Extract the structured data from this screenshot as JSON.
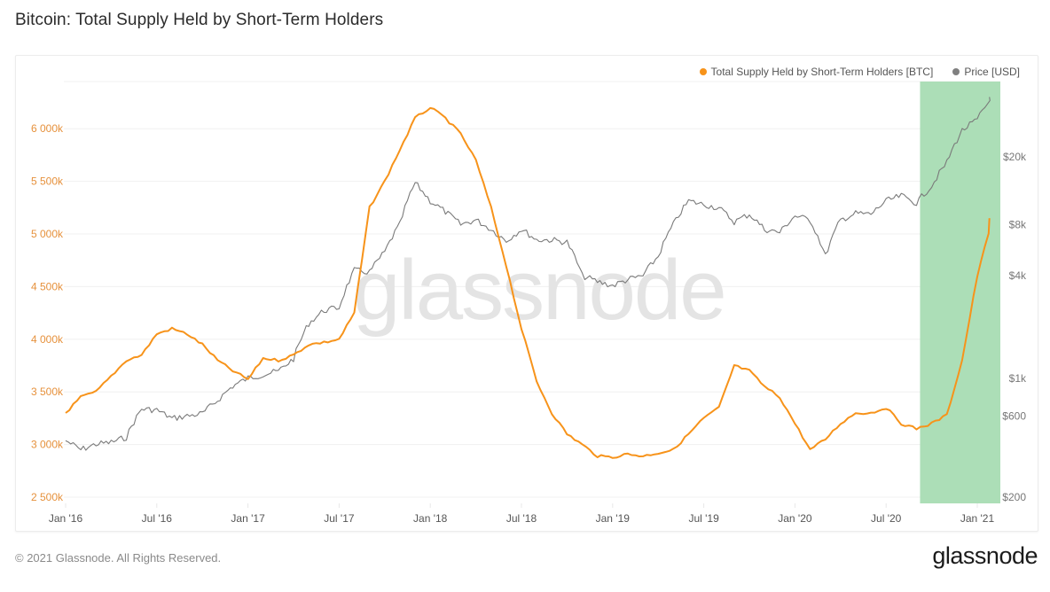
{
  "title": "Bitcoin: Total Supply Held by Short-Term Holders",
  "legend": {
    "items": [
      {
        "label": "Total Supply Held by Short-Term Holders [BTC]",
        "color": "#f7931a"
      },
      {
        "label": "Price [USD]",
        "color": "#808080"
      }
    ]
  },
  "watermark": "glassnode",
  "footer": {
    "copyright": "© 2021 Glassnode. All Rights Reserved.",
    "brand": "glassnode"
  },
  "colors": {
    "supply": "#f7931a",
    "price": "#7a7a7a",
    "highlight": "#a8dcb3",
    "left_axis": "#e6913c",
    "grid": "#f0f0f0"
  },
  "chart_data": {
    "type": "line",
    "title": "Bitcoin: Total Supply Held by Short-Term Holders",
    "xlabel": "",
    "ylabel_left": "Total Supply Held by Short-Term Holders [BTC]",
    "ylabel_right": "Price [USD]",
    "x_ticks": [
      "Jan '16",
      "Jul '16",
      "Jan '17",
      "Jul '17",
      "Jan '18",
      "Jul '18",
      "Jan '19",
      "Jul '19",
      "Jan '20",
      "Jul '20",
      "Jan '21"
    ],
    "y_left_ticks": [
      "2 500k",
      "3 000k",
      "3 500k",
      "4 000k",
      "4 500k",
      "5 000k",
      "5 500k",
      "6 000k"
    ],
    "y_left_values": [
      2500,
      3000,
      3500,
      4000,
      4500,
      5000,
      5500,
      6000
    ],
    "y_right_ticks": [
      "$200",
      "$600",
      "$1k",
      "$4k",
      "$8k",
      "$20k"
    ],
    "y_right_values": [
      200,
      600,
      1000,
      4000,
      8000,
      20000
    ],
    "y_left_range": [
      2450,
      6450
    ],
    "y_right_scale": "log",
    "grid": true,
    "legend_position": "top-right",
    "highlight_region": {
      "start": "2020-09",
      "end": "2021-02",
      "color": "#a8dcb3"
    },
    "x": [
      "2016-01",
      "2016-02",
      "2016-03",
      "2016-04",
      "2016-05",
      "2016-06",
      "2016-07",
      "2016-08",
      "2016-09",
      "2016-10",
      "2016-11",
      "2016-12",
      "2017-01",
      "2017-02",
      "2017-03",
      "2017-04",
      "2017-05",
      "2017-06",
      "2017-07",
      "2017-08",
      "2017-09",
      "2017-10",
      "2017-11",
      "2017-12",
      "2018-01",
      "2018-02",
      "2018-03",
      "2018-04",
      "2018-05",
      "2018-06",
      "2018-07",
      "2018-08",
      "2018-09",
      "2018-10",
      "2018-11",
      "2018-12",
      "2019-01",
      "2019-02",
      "2019-03",
      "2019-04",
      "2019-05",
      "2019-06",
      "2019-07",
      "2019-08",
      "2019-09",
      "2019-10",
      "2019-11",
      "2019-12",
      "2020-01",
      "2020-02",
      "2020-03",
      "2020-04",
      "2020-05",
      "2020-06",
      "2020-07",
      "2020-08",
      "2020-09",
      "2020-10",
      "2020-11",
      "2020-12",
      "2021-01",
      "2021-02"
    ],
    "series": [
      {
        "name": "Total Supply Held by Short-Term Holders [BTC]",
        "unit": "k BTC",
        "axis": "left",
        "values": [
          3300,
          3450,
          3500,
          3650,
          3800,
          3850,
          4050,
          4100,
          4050,
          3950,
          3800,
          3700,
          3620,
          3820,
          3800,
          3850,
          3950,
          3970,
          4000,
          4250,
          5250,
          5500,
          5800,
          6100,
          6200,
          6100,
          5950,
          5700,
          5250,
          4700,
          4100,
          3600,
          3300,
          3100,
          3000,
          2890,
          2880,
          2910,
          2890,
          2920,
          2950,
          3100,
          3250,
          3350,
          3750,
          3700,
          3550,
          3450,
          3200,
          2950,
          3050,
          3200,
          3300,
          3300,
          3350,
          3200,
          3150,
          3200,
          3280,
          3800,
          4600,
          5150
        ]
      },
      {
        "name": "Price [USD]",
        "unit": "USD",
        "axis": "right",
        "values": [
          430,
          380,
          410,
          420,
          450,
          660,
          650,
          580,
          600,
          620,
          740,
          900,
          1000,
          1050,
          1100,
          1300,
          2100,
          2500,
          2600,
          4300,
          4200,
          5500,
          8000,
          14000,
          11000,
          9500,
          8000,
          8500,
          7500,
          6400,
          7500,
          6500,
          6500,
          6300,
          4000,
          3700,
          3500,
          3800,
          4000,
          5200,
          8000,
          11000,
          10500,
          10000,
          8300,
          9200,
          7500,
          7200,
          9000,
          8500,
          5200,
          8500,
          9300,
          9200,
          11000,
          11800,
          10700,
          13500,
          18500,
          28500,
          33000,
          45000
        ]
      }
    ]
  }
}
